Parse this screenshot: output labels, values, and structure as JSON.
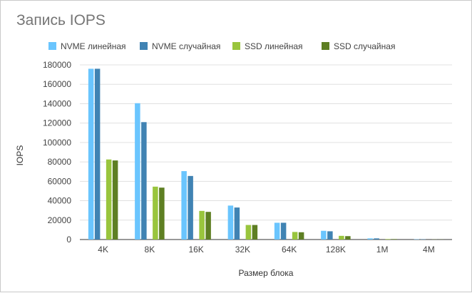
{
  "chart_data": {
    "type": "bar",
    "title": "Запись IOPS",
    "xlabel": "Размер блока",
    "ylabel": "IOPS",
    "categories": [
      "4K",
      "8K",
      "16K",
      "32K",
      "64K",
      "128K",
      "1M",
      "4M"
    ],
    "ylim": [
      0,
      180000
    ],
    "yticks": [
      "0",
      "20000",
      "40000",
      "60000",
      "80000",
      "100000",
      "120000",
      "140000",
      "160000",
      "180000"
    ],
    "grid": true,
    "legend_position": "top",
    "series": [
      {
        "name": "NVME линейная",
        "color": "#6ac5fe",
        "values": [
          176000,
          140500,
          70500,
          35000,
          17300,
          9000,
          1200,
          300
        ]
      },
      {
        "name": "NVME случайная",
        "color": "#4083b3",
        "values": [
          176000,
          121000,
          65500,
          33000,
          17300,
          8500,
          1200,
          300
        ]
      },
      {
        "name": "SSD линейная",
        "color": "#99c53d",
        "values": [
          82500,
          54500,
          29500,
          15000,
          7800,
          3800,
          500,
          100
        ]
      },
      {
        "name": "SSD случайная",
        "color": "#5e7f23",
        "values": [
          81500,
          53500,
          28500,
          15000,
          7500,
          3500,
          500,
          100
        ]
      }
    ]
  }
}
